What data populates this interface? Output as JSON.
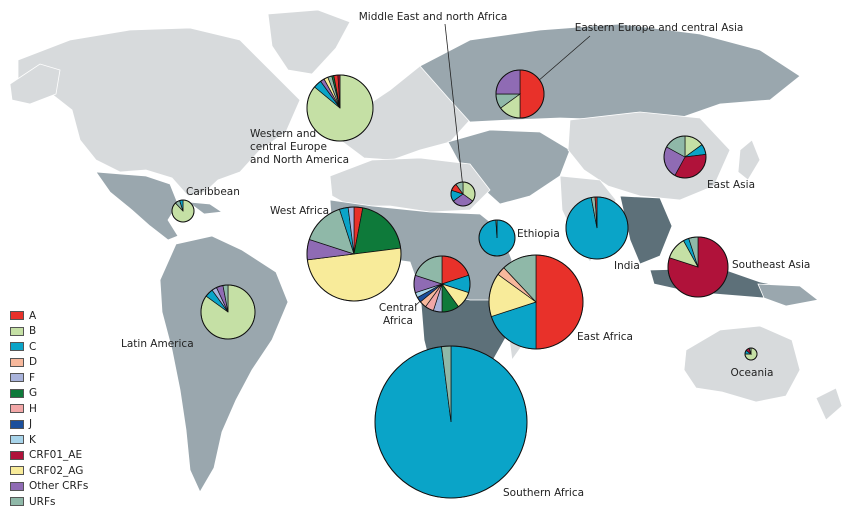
{
  "legend": {
    "items": [
      {
        "key": "A",
        "label": "A",
        "color": "#e8312a"
      },
      {
        "key": "B",
        "label": "B",
        "color": "#c5e0a5"
      },
      {
        "key": "C",
        "label": "C",
        "color": "#0aa4c8"
      },
      {
        "key": "D",
        "label": "D",
        "color": "#f7b89c"
      },
      {
        "key": "F",
        "label": "F",
        "color": "#a9b3db"
      },
      {
        "key": "G",
        "label": "G",
        "color": "#0e7a3a"
      },
      {
        "key": "H",
        "label": "H",
        "color": "#f2a7a7"
      },
      {
        "key": "J",
        "label": "J",
        "color": "#1b4f9c"
      },
      {
        "key": "K",
        "label": "K",
        "color": "#a8d4ea"
      },
      {
        "key": "CRF01_AE",
        "label": "CRF01_AE",
        "color": "#b0123a"
      },
      {
        "key": "CRF02_AG",
        "label": "CRF02_AG",
        "color": "#f8eb9a"
      },
      {
        "key": "OtherCRFs",
        "label": "Other CRFs",
        "color": "#8f6bb4"
      },
      {
        "key": "URFs",
        "label": "URFs",
        "color": "#8fb8a8"
      }
    ]
  },
  "regions": [
    {
      "id": "western-central-europe-north-america",
      "label": [
        "Western and",
        "central Europe",
        "and North America"
      ],
      "shares": [
        {
          "k": "B",
          "v": 86
        },
        {
          "k": "C",
          "v": 4
        },
        {
          "k": "OtherCRFs",
          "v": 2
        },
        {
          "k": "CRF02_AG",
          "v": 2
        },
        {
          "k": "URFs",
          "v": 2
        },
        {
          "k": "G",
          "v": 1
        },
        {
          "k": "A",
          "v": 2
        },
        {
          "k": "CRF01_AE",
          "v": 1
        }
      ]
    },
    {
      "id": "middle-east-north-africa",
      "label": [
        "Middle East and north Africa"
      ],
      "shares": [
        {
          "k": "B",
          "v": 35
        },
        {
          "k": "OtherCRFs",
          "v": 30
        },
        {
          "k": "C",
          "v": 15
        },
        {
          "k": "A",
          "v": 10
        },
        {
          "k": "URFs",
          "v": 10
        }
      ]
    },
    {
      "id": "eastern-europe-central-asia",
      "label": [
        "Eastern Europe and central Asia"
      ],
      "shares": [
        {
          "k": "A",
          "v": 50
        },
        {
          "k": "B",
          "v": 15
        },
        {
          "k": "URFs",
          "v": 10
        },
        {
          "k": "OtherCRFs",
          "v": 25
        }
      ]
    },
    {
      "id": "caribbean",
      "label": [
        "Caribbean"
      ],
      "shares": [
        {
          "k": "B",
          "v": 88
        },
        {
          "k": "URFs",
          "v": 7
        },
        {
          "k": "C",
          "v": 5
        }
      ]
    },
    {
      "id": "west-africa",
      "label": [
        "West Africa"
      ],
      "shares": [
        {
          "k": "A",
          "v": 3
        },
        {
          "k": "G",
          "v": 20
        },
        {
          "k": "CRF02_AG",
          "v": 50
        },
        {
          "k": "OtherCRFs",
          "v": 7
        },
        {
          "k": "URFs",
          "v": 15
        },
        {
          "k": "C",
          "v": 3
        },
        {
          "k": "F",
          "v": 2
        }
      ]
    },
    {
      "id": "ethiopia",
      "label": [
        "Ethiopia"
      ],
      "shares": [
        {
          "k": "C",
          "v": 99
        },
        {
          "k": "B",
          "v": 1
        }
      ]
    },
    {
      "id": "india",
      "label": [
        "India"
      ],
      "shares": [
        {
          "k": "C",
          "v": 97
        },
        {
          "k": "URFs",
          "v": 2
        },
        {
          "k": "A",
          "v": 1
        }
      ]
    },
    {
      "id": "east-asia",
      "label": [
        "East Asia"
      ],
      "shares": [
        {
          "k": "B",
          "v": 15
        },
        {
          "k": "C",
          "v": 8
        },
        {
          "k": "CRF01_AE",
          "v": 35
        },
        {
          "k": "OtherCRFs",
          "v": 25
        },
        {
          "k": "URFs",
          "v": 17
        }
      ]
    },
    {
      "id": "latin-america",
      "label": [
        "Latin America"
      ],
      "shares": [
        {
          "k": "B",
          "v": 85
        },
        {
          "k": "C",
          "v": 5
        },
        {
          "k": "F",
          "v": 3
        },
        {
          "k": "OtherCRFs",
          "v": 4
        },
        {
          "k": "URFs",
          "v": 3
        }
      ]
    },
    {
      "id": "central-africa",
      "label": [
        "Central",
        "Africa"
      ],
      "shares": [
        {
          "k": "A",
          "v": 20
        },
        {
          "k": "C",
          "v": 10
        },
        {
          "k": "CRF02_AG",
          "v": 10
        },
        {
          "k": "G",
          "v": 10
        },
        {
          "k": "F",
          "v": 5
        },
        {
          "k": "H",
          "v": 5
        },
        {
          "k": "D",
          "v": 4
        },
        {
          "k": "J",
          "v": 3
        },
        {
          "k": "K",
          "v": 3
        },
        {
          "k": "OtherCRFs",
          "v": 10
        },
        {
          "k": "URFs",
          "v": 20
        }
      ]
    },
    {
      "id": "east-africa",
      "label": [
        "East Africa"
      ],
      "shares": [
        {
          "k": "A",
          "v": 50
        },
        {
          "k": "C",
          "v": 20
        },
        {
          "k": "CRF02_AG",
          "v": 15
        },
        {
          "k": "D",
          "v": 3
        },
        {
          "k": "URFs",
          "v": 12
        }
      ]
    },
    {
      "id": "southeast-asia",
      "label": [
        "Southeast Asia"
      ],
      "shares": [
        {
          "k": "CRF01_AE",
          "v": 80
        },
        {
          "k": "B",
          "v": 12
        },
        {
          "k": "C",
          "v": 3
        },
        {
          "k": "URFs",
          "v": 5
        }
      ]
    },
    {
      "id": "oceania",
      "label": [
        "Oceania"
      ],
      "shares": [
        {
          "k": "B",
          "v": 75
        },
        {
          "k": "C",
          "v": 10
        },
        {
          "k": "CRF01_AE",
          "v": 10
        },
        {
          "k": "URFs",
          "v": 5
        }
      ]
    },
    {
      "id": "southern-africa",
      "label": [
        "Southern Africa"
      ],
      "shares": [
        {
          "k": "C",
          "v": 98
        },
        {
          "k": "URFs",
          "v": 2
        }
      ]
    }
  ]
}
